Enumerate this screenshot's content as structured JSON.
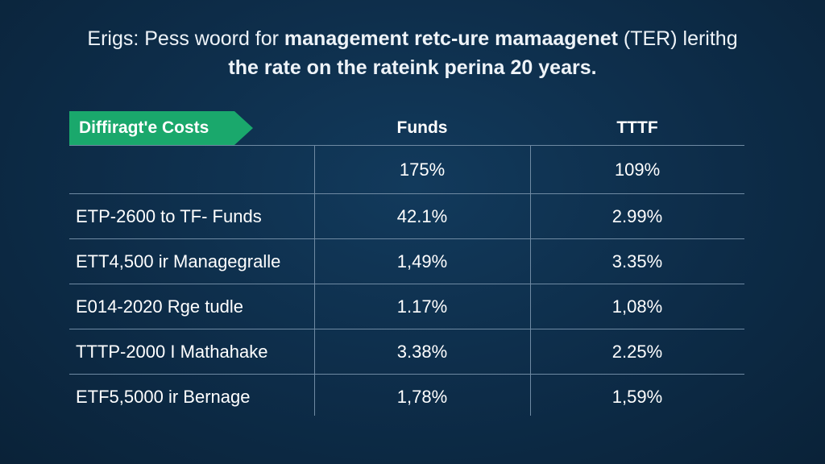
{
  "title": {
    "line1_prefix": "Erigs: Pess woord for ",
    "line1_bold": "management retc-ure mamaagenet",
    "line1_suffix": " (TER) lerithg",
    "line2": "the rate on the rateink perina 20 years."
  },
  "table": {
    "tag": "Diffiragt'e Costs",
    "columns": [
      "Funds",
      "TTTF"
    ],
    "rows": [
      {
        "label": "",
        "funds": "175%",
        "tttf": "109%"
      },
      {
        "label": "ETP-2600 to TF- Funds",
        "funds": "42.1%",
        "tttf": "2.99%"
      },
      {
        "label": "ETT4,500 ir Managegralle",
        "funds": "1,49%",
        "tttf": "3.35%"
      },
      {
        "label": "E014-2020 Rge tudle",
        "funds": "1.17%",
        "tttf": "1,08%"
      },
      {
        "label": "TTTP-2000 I Mathahake",
        "funds": "3.38%",
        "tttf": "2.25%"
      },
      {
        "label": "ETF5,5000 ir Bernage",
        "funds": "1,78%",
        "tttf": "1,59%"
      }
    ]
  }
}
